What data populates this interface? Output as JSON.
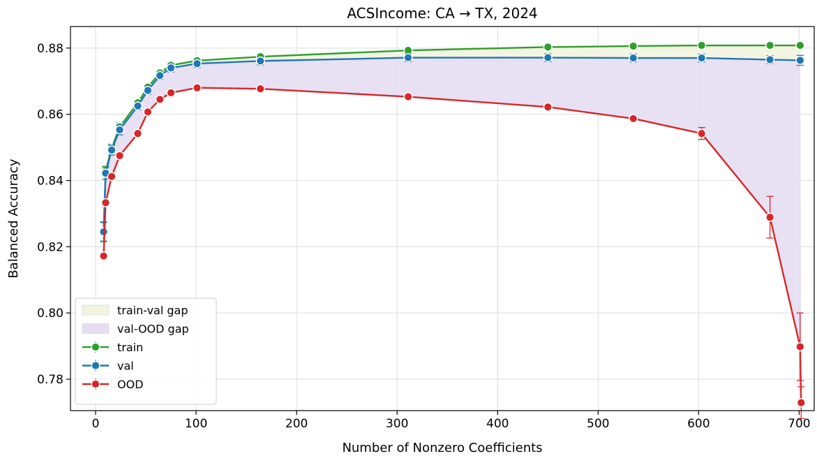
{
  "chart_data": {
    "type": "line",
    "title": "ACSIncome: CA → TX, 2024",
    "xlabel": "Number of Nonzero Coefficients",
    "ylabel": "Balanced Accuracy",
    "xlim": [
      -25,
      715
    ],
    "ylim": [
      0.7705,
      0.8865
    ],
    "xticks": [
      0,
      100,
      200,
      300,
      400,
      500,
      600,
      700
    ],
    "yticks": [
      0.78,
      0.8,
      0.82,
      0.84,
      0.86,
      0.88
    ],
    "ytick_labels": [
      "0.78",
      "0.80",
      "0.82",
      "0.84",
      "0.86",
      "0.88"
    ],
    "grid": true,
    "legend_position": "lower-left",
    "series": [
      {
        "name": "train",
        "color": "#2ca02c",
        "points": [
          {
            "x": 8,
            "y": 0.8245,
            "err": 0.003
          },
          {
            "x": 10,
            "y": 0.8428,
            "err": 0.0015
          },
          {
            "x": 16,
            "y": 0.8498,
            "err": 0.0012
          },
          {
            "x": 24,
            "y": 0.8562,
            "err": 0.0012
          },
          {
            "x": 42,
            "y": 0.8635,
            "err": 0.0008
          },
          {
            "x": 52,
            "y": 0.8682,
            "err": 0.0008
          },
          {
            "x": 64,
            "y": 0.8725,
            "err": 0.0006
          },
          {
            "x": 75,
            "y": 0.8748,
            "err": 0.0006
          },
          {
            "x": 101,
            "y": 0.8762,
            "err": 0.0005
          },
          {
            "x": 164,
            "y": 0.8774,
            "err": 0.0005
          },
          {
            "x": 311,
            "y": 0.8793,
            "err": 0.0004
          },
          {
            "x": 450,
            "y": 0.8803,
            "err": 0.0004
          },
          {
            "x": 535,
            "y": 0.8806,
            "err": 0.0004
          },
          {
            "x": 603,
            "y": 0.8808,
            "err": 0.0004
          },
          {
            "x": 671,
            "y": 0.8808,
            "err": 0.0004
          },
          {
            "x": 701,
            "y": 0.8808,
            "err": 0.0004
          }
        ]
      },
      {
        "name": "val",
        "color": "#1f77b4",
        "points": [
          {
            "x": 8,
            "y": 0.8245,
            "err": 0.0028
          },
          {
            "x": 10,
            "y": 0.8422,
            "err": 0.0018
          },
          {
            "x": 16,
            "y": 0.8492,
            "err": 0.0015
          },
          {
            "x": 24,
            "y": 0.8553,
            "err": 0.0015
          },
          {
            "x": 42,
            "y": 0.8625,
            "err": 0.0012
          },
          {
            "x": 52,
            "y": 0.8672,
            "err": 0.0012
          },
          {
            "x": 64,
            "y": 0.8717,
            "err": 0.0012
          },
          {
            "x": 75,
            "y": 0.874,
            "err": 0.0012
          },
          {
            "x": 101,
            "y": 0.8753,
            "err": 0.0012
          },
          {
            "x": 164,
            "y": 0.8761,
            "err": 0.0012
          },
          {
            "x": 311,
            "y": 0.8771,
            "err": 0.0012
          },
          {
            "x": 450,
            "y": 0.8771,
            "err": 0.0012
          },
          {
            "x": 535,
            "y": 0.877,
            "err": 0.0012
          },
          {
            "x": 603,
            "y": 0.877,
            "err": 0.0012
          },
          {
            "x": 671,
            "y": 0.8765,
            "err": 0.0012
          },
          {
            "x": 701,
            "y": 0.8763,
            "err": 0.0015
          }
        ]
      },
      {
        "name": "OOD",
        "color": "#d62728",
        "points": [
          {
            "x": 8,
            "y": 0.8172,
            "err": 0.0
          },
          {
            "x": 10,
            "y": 0.8333,
            "err": 0.0
          },
          {
            "x": 16,
            "y": 0.8412,
            "err": 0.0
          },
          {
            "x": 24,
            "y": 0.8475,
            "err": 0.0
          },
          {
            "x": 42,
            "y": 0.8542,
            "err": 0.0
          },
          {
            "x": 52,
            "y": 0.8607,
            "err": 0.0
          },
          {
            "x": 64,
            "y": 0.8645,
            "err": 0.0
          },
          {
            "x": 75,
            "y": 0.8665,
            "err": 0.0
          },
          {
            "x": 101,
            "y": 0.868,
            "err": 0.0
          },
          {
            "x": 164,
            "y": 0.8677,
            "err": 0.0
          },
          {
            "x": 311,
            "y": 0.8653,
            "err": 0.0
          },
          {
            "x": 450,
            "y": 0.8622,
            "err": 0.0
          },
          {
            "x": 535,
            "y": 0.8587,
            "err": 0.0
          },
          {
            "x": 603,
            "y": 0.8542,
            "err": 0.0018
          },
          {
            "x": 671,
            "y": 0.8289,
            "err": 0.0063
          },
          {
            "x": 701,
            "y": 0.7898,
            "err": 0.0102
          },
          {
            "x": 702,
            "y": 0.7729,
            "err": 0.0048
          }
        ]
      }
    ],
    "fills": [
      {
        "name": "train-val gap",
        "between": [
          "train",
          "val"
        ],
        "color": "#f3f3df"
      },
      {
        "name": "val-OOD gap",
        "between": [
          "val",
          "OOD"
        ],
        "color": "#e6ddf2"
      }
    ]
  }
}
